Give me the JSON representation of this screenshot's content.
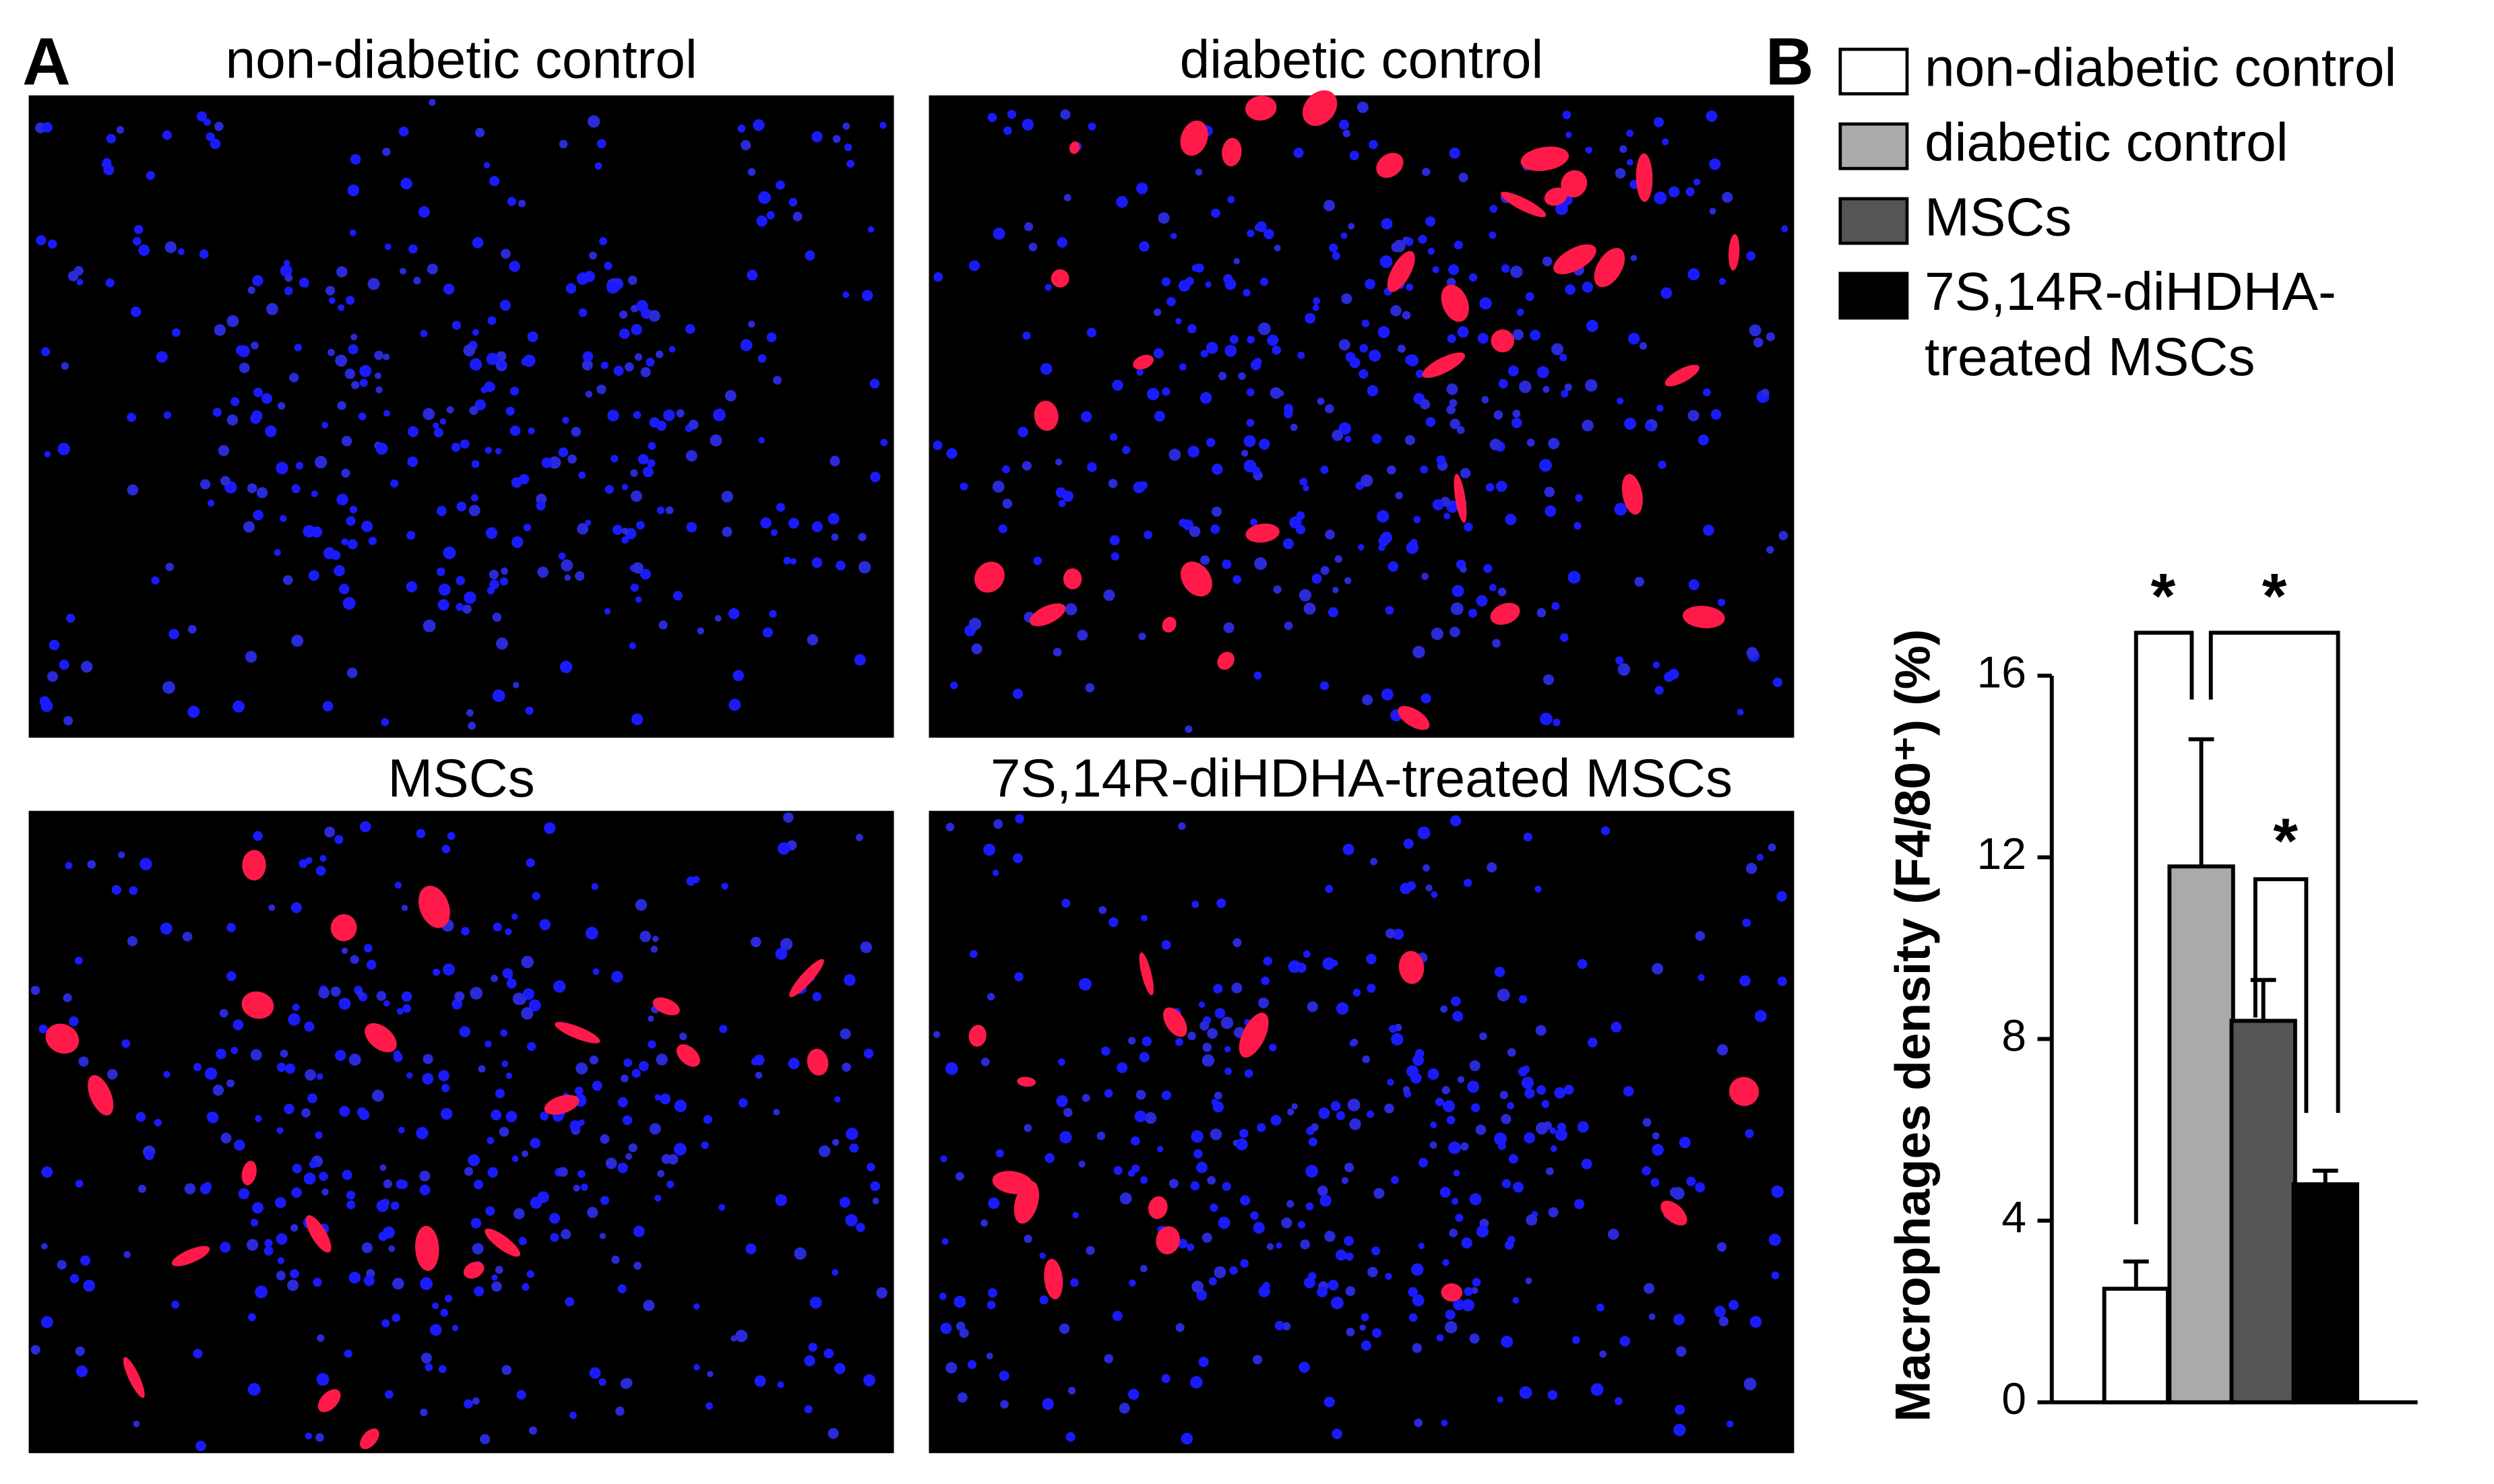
{
  "panel_labels": [
    "A",
    "B"
  ],
  "images": [
    {
      "title": "non-diabetic control"
    },
    {
      "title": "diabetic control"
    },
    {
      "title": "MSCs"
    },
    {
      "title": "7S,14R-diHDHA-treated MSCs"
    }
  ],
  "chart_data": {
    "type": "bar",
    "y_label": "Macrophages density (F4/80⁺) (%)",
    "categories": [
      "non-diabetic control",
      "diabetic control",
      "MSCs",
      "7S,14R-diHDHA-treated MSCs"
    ],
    "values": [
      2.5,
      11.8,
      8.4,
      4.8
    ],
    "errors": [
      0.6,
      2.8,
      0.9,
      0.3
    ],
    "colors": [
      "#ffffff",
      "#aaaaaa",
      "#555555",
      "#000000"
    ],
    "ylim": [
      0,
      16
    ],
    "yticks": [
      0,
      4,
      8,
      12,
      16
    ],
    "annotations": [
      "*",
      "*",
      "*"
    ]
  }
}
